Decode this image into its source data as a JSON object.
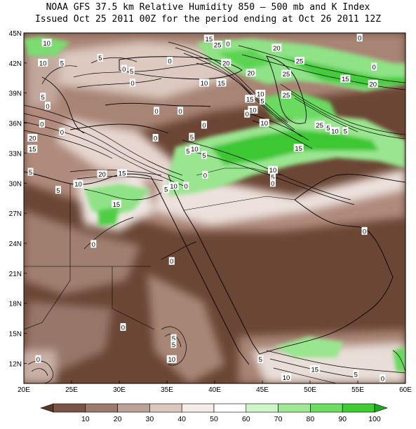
{
  "header": {
    "title_line1": "NOAA GFS 37.5 km Relative Humidity 850 — 500 mb and K Index",
    "title_line2": "Issued Oct 25 2011 00Z for the period ending at Oct 26 2011 12Z"
  },
  "axes": {
    "lat_labels": [
      "45N",
      "42N",
      "39N",
      "36N",
      "33N",
      "30N",
      "27N",
      "24N",
      "21N",
      "18N",
      "15N",
      "12N"
    ],
    "lon_labels": [
      "20E",
      "25E",
      "30E",
      "35E",
      "40E",
      "45E",
      "50E",
      "55E",
      "60E"
    ]
  },
  "colorbar": {
    "ticks": [
      "10",
      "20",
      "30",
      "40",
      "50",
      "60",
      "70",
      "80",
      "90",
      "100"
    ],
    "colors": [
      "#5a3826",
      "#7a5546",
      "#9a7a6c",
      "#bba197",
      "#dcc7bf",
      "#f4ece8",
      "#ffffff",
      "#cff5c8",
      "#9ee896",
      "#6cdc62",
      "#40cc34",
      "#1aaa1a"
    ]
  },
  "contour_labels": [
    {
      "t": "10",
      "lon": 22.4,
      "lat": 44.0
    },
    {
      "t": "10",
      "lon": 22.0,
      "lat": 42.0
    },
    {
      "t": "5",
      "lon": 24.0,
      "lat": 42.0
    },
    {
      "t": "5",
      "lon": 28.0,
      "lat": 42.5
    },
    {
      "t": "0",
      "lon": 30.5,
      "lat": 41.4
    },
    {
      "t": "5",
      "lon": 31.3,
      "lat": 41.2
    },
    {
      "t": "0",
      "lon": 35.3,
      "lat": 42.2
    },
    {
      "t": "15",
      "lon": 39.4,
      "lat": 44.4
    },
    {
      "t": "25",
      "lon": 40.3,
      "lat": 43.8
    },
    {
      "t": "0",
      "lon": 41.4,
      "lat": 43.9
    },
    {
      "t": "20",
      "lon": 46.5,
      "lat": 43.5
    },
    {
      "t": "25",
      "lon": 48.9,
      "lat": 42.2
    },
    {
      "t": "0",
      "lon": 55.2,
      "lat": 44.5
    },
    {
      "t": "0",
      "lon": 56.7,
      "lat": 41.6
    },
    {
      "t": "15",
      "lon": 40.7,
      "lat": 40.0
    },
    {
      "t": "20",
      "lon": 41.2,
      "lat": 42.0
    },
    {
      "t": "20",
      "lon": 43.8,
      "lat": 41.0
    },
    {
      "t": "10",
      "lon": 38.9,
      "lat": 40.0
    },
    {
      "t": "25",
      "lon": 47.5,
      "lat": 40.9
    },
    {
      "t": "15",
      "lon": 53.7,
      "lat": 40.4
    },
    {
      "t": "20",
      "lon": 56.6,
      "lat": 39.9
    },
    {
      "t": "0",
      "lon": 31.4,
      "lat": 40.0
    },
    {
      "t": "5",
      "lon": 22.0,
      "lat": 38.6
    },
    {
      "t": "0",
      "lon": 22.5,
      "lat": 37.7
    },
    {
      "t": "0",
      "lon": 36.4,
      "lat": 37.2
    },
    {
      "t": "0",
      "lon": 33.9,
      "lat": 37.2
    },
    {
      "t": "10",
      "lon": 44.8,
      "lat": 38.9
    },
    {
      "t": "25",
      "lon": 47.5,
      "lat": 38.8
    },
    {
      "t": "15",
      "lon": 43.7,
      "lat": 38.4
    },
    {
      "t": "5",
      "lon": 45.0,
      "lat": 38.2
    },
    {
      "t": "10",
      "lon": 44.0,
      "lat": 37.3
    },
    {
      "t": "0",
      "lon": 43.4,
      "lat": 36.9
    },
    {
      "t": "10",
      "lon": 45.2,
      "lat": 36.0
    },
    {
      "t": "25",
      "lon": 51.0,
      "lat": 35.8
    },
    {
      "t": "5",
      "lon": 51.9,
      "lat": 35.5
    },
    {
      "t": "10",
      "lon": 52.6,
      "lat": 35.2
    },
    {
      "t": "5",
      "lon": 53.7,
      "lat": 35.2
    },
    {
      "t": "0",
      "lon": 21.9,
      "lat": 35.9
    },
    {
      "t": "0",
      "lon": 24.0,
      "lat": 35.1
    },
    {
      "t": "0",
      "lon": 38.9,
      "lat": 35.8
    },
    {
      "t": "20",
      "lon": 20.9,
      "lat": 34.5
    },
    {
      "t": "15",
      "lon": 20.9,
      "lat": 33.4
    },
    {
      "t": "0",
      "lon": 33.8,
      "lat": 34.5
    },
    {
      "t": "5",
      "lon": 37.6,
      "lat": 34.6
    },
    {
      "t": "5",
      "lon": 37.2,
      "lat": 33.2
    },
    {
      "t": "10",
      "lon": 37.9,
      "lat": 33.4
    },
    {
      "t": "5",
      "lon": 38.9,
      "lat": 32.8
    },
    {
      "t": "15",
      "lon": 48.8,
      "lat": 33.5
    },
    {
      "t": "5",
      "lon": 20.7,
      "lat": 31.1
    },
    {
      "t": "20",
      "lon": 28.2,
      "lat": 30.9
    },
    {
      "t": "15",
      "lon": 30.3,
      "lat": 31.0
    },
    {
      "t": "0",
      "lon": 39.0,
      "lat": 30.8
    },
    {
      "t": "10",
      "lon": 46.1,
      "lat": 31.3
    },
    {
      "t": "5",
      "lon": 46.1,
      "lat": 30.6
    },
    {
      "t": "0",
      "lon": 46.1,
      "lat": 30.0
    },
    {
      "t": "5",
      "lon": 23.6,
      "lat": 29.3
    },
    {
      "t": "10",
      "lon": 25.7,
      "lat": 29.9
    },
    {
      "t": "5",
      "lon": 34.9,
      "lat": 29.4
    },
    {
      "t": "10",
      "lon": 35.7,
      "lat": 29.7
    },
    {
      "t": "0",
      "lon": 37.0,
      "lat": 29.7
    },
    {
      "t": "15",
      "lon": 29.7,
      "lat": 27.9
    },
    {
      "t": "0",
      "lon": 27.3,
      "lat": 23.9
    },
    {
      "t": "0",
      "lon": 55.7,
      "lat": 25.2
    },
    {
      "t": "0",
      "lon": 35.5,
      "lat": 22.2
    },
    {
      "t": "0",
      "lon": 30.4,
      "lat": 15.6
    },
    {
      "t": "5",
      "lon": 35.7,
      "lat": 14.5
    },
    {
      "t": "5",
      "lon": 35.7,
      "lat": 13.9
    },
    {
      "t": "10",
      "lon": 35.5,
      "lat": 12.4
    },
    {
      "t": "0",
      "lon": 21.5,
      "lat": 12.4
    },
    {
      "t": "5",
      "lon": 44.8,
      "lat": 12.4
    },
    {
      "t": "15",
      "lon": 50.5,
      "lat": 11.4
    },
    {
      "t": "10",
      "lon": 47.5,
      "lat": 10.6
    },
    {
      "t": "5",
      "lon": 54.8,
      "lat": 10.9
    },
    {
      "t": "0",
      "lon": 57.6,
      "lat": 10.5
    }
  ]
}
